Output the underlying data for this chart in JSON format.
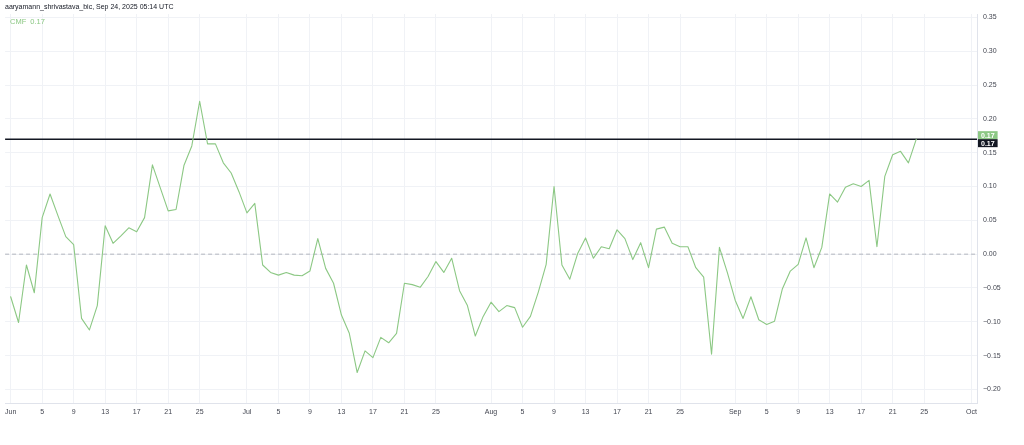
{
  "chart_data": {
    "type": "line",
    "title": "aaryamann_shrivastava_bic, Sep 24, 2025 05:14 UTC",
    "annotations": [
      "0.17",
      "0.17"
    ],
    "x": [
      "2025-06-01",
      "2025-06-02",
      "2025-06-03",
      "2025-06-04",
      "2025-06-05",
      "2025-06-06",
      "2025-06-07",
      "2025-06-08",
      "2025-06-09",
      "2025-06-10",
      "2025-06-11",
      "2025-06-12",
      "2025-06-13",
      "2025-06-14",
      "2025-06-15",
      "2025-06-16",
      "2025-06-17",
      "2025-06-18",
      "2025-06-19",
      "2025-06-20",
      "2025-06-21",
      "2025-06-22",
      "2025-06-23",
      "2025-06-24",
      "2025-06-25",
      "2025-06-26",
      "2025-06-27",
      "2025-06-28",
      "2025-06-29",
      "2025-06-30",
      "2025-07-01",
      "2025-07-02",
      "2025-07-03",
      "2025-07-04",
      "2025-07-05",
      "2025-07-06",
      "2025-07-07",
      "2025-07-08",
      "2025-07-09",
      "2025-07-10",
      "2025-07-11",
      "2025-07-12",
      "2025-07-13",
      "2025-07-14",
      "2025-07-15",
      "2025-07-16",
      "2025-07-17",
      "2025-07-18",
      "2025-07-19",
      "2025-07-20",
      "2025-07-21",
      "2025-07-22",
      "2025-07-23",
      "2025-07-24",
      "2025-07-25",
      "2025-07-26",
      "2025-07-27",
      "2025-07-28",
      "2025-07-29",
      "2025-07-30",
      "2025-07-31",
      "2025-08-01",
      "2025-08-02",
      "2025-08-03",
      "2025-08-04",
      "2025-08-05",
      "2025-08-06",
      "2025-08-07",
      "2025-08-08",
      "2025-08-09",
      "2025-08-10",
      "2025-08-11",
      "2025-08-12",
      "2025-08-13",
      "2025-08-14",
      "2025-08-15",
      "2025-08-16",
      "2025-08-17",
      "2025-08-18",
      "2025-08-19",
      "2025-08-20",
      "2025-08-21",
      "2025-08-22",
      "2025-08-23",
      "2025-08-24",
      "2025-08-25",
      "2025-08-26",
      "2025-08-27",
      "2025-08-28",
      "2025-08-29",
      "2025-08-30",
      "2025-08-31",
      "2025-09-01",
      "2025-09-02",
      "2025-09-03",
      "2025-09-04",
      "2025-09-05",
      "2025-09-06",
      "2025-09-07",
      "2025-09-08",
      "2025-09-09",
      "2025-09-10",
      "2025-09-11",
      "2025-09-12",
      "2025-09-13",
      "2025-09-14",
      "2025-09-15",
      "2025-09-16",
      "2025-09-17",
      "2025-09-18",
      "2025-09-19",
      "2025-09-20",
      "2025-09-21",
      "2025-09-22",
      "2025-09-23",
      "2025-09-24"
    ],
    "series": [
      {
        "name": "CMF",
        "color": "#8cc884",
        "values": [
          -0.063,
          -0.101,
          -0.016,
          -0.057,
          0.054,
          0.089,
          0.057,
          0.026,
          0.014,
          -0.095,
          -0.112,
          -0.076,
          0.042,
          0.016,
          0.027,
          0.039,
          0.033,
          0.054,
          0.132,
          0.098,
          0.064,
          0.066,
          0.131,
          0.16,
          0.226,
          0.163,
          0.163,
          0.135,
          0.12,
          0.092,
          0.061,
          0.075,
          -0.016,
          -0.027,
          -0.031,
          -0.027,
          -0.031,
          -0.032,
          -0.025,
          0.023,
          -0.021,
          -0.043,
          -0.09,
          -0.117,
          -0.175,
          -0.143,
          -0.153,
          -0.123,
          -0.131,
          -0.117,
          -0.043,
          -0.045,
          -0.049,
          -0.033,
          -0.011,
          -0.027,
          -0.006,
          -0.054,
          -0.076,
          -0.121,
          -0.092,
          -0.071,
          -0.085,
          -0.076,
          -0.079,
          -0.108,
          -0.092,
          -0.056,
          -0.015,
          0.1,
          -0.016,
          -0.037,
          0.001,
          0.024,
          -0.006,
          0.011,
          0.008,
          0.036,
          0.023,
          -0.008,
          0.017,
          -0.02,
          0.037,
          0.04,
          0.016,
          0.011,
          0.011,
          -0.02,
          -0.034,
          -0.148,
          0.01,
          -0.027,
          -0.068,
          -0.095,
          -0.063,
          -0.097,
          -0.104,
          -0.099,
          -0.051,
          -0.025,
          -0.015,
          0.024,
          -0.02,
          0.01,
          0.089,
          0.077,
          0.099,
          0.104,
          0.1,
          0.109,
          0.011,
          0.115,
          0.147,
          0.152,
          0.135,
          0.17
        ]
      }
    ],
    "xlim": [
      "2025-05-31T07:00",
      "2025-10-01T17:00"
    ],
    "ylim": [
      -0.22,
      0.355
    ],
    "xticks": [
      {
        "value": "2025-06-01",
        "label": "Jun"
      },
      {
        "value": "2025-06-05",
        "label": "5"
      },
      {
        "value": "2025-06-09",
        "label": "9"
      },
      {
        "value": "2025-06-13",
        "label": "13"
      },
      {
        "value": "2025-06-17",
        "label": "17"
      },
      {
        "value": "2025-06-21",
        "label": "21"
      },
      {
        "value": "2025-06-25",
        "label": "25"
      },
      {
        "value": "2025-07-01",
        "label": "Jul"
      },
      {
        "value": "2025-07-05",
        "label": "5"
      },
      {
        "value": "2025-07-09",
        "label": "9"
      },
      {
        "value": "2025-07-13",
        "label": "13"
      },
      {
        "value": "2025-07-17",
        "label": "17"
      },
      {
        "value": "2025-07-21",
        "label": "21"
      },
      {
        "value": "2025-07-25",
        "label": "25"
      },
      {
        "value": "2025-08-01",
        "label": "Aug"
      },
      {
        "value": "2025-08-05",
        "label": "5"
      },
      {
        "value": "2025-08-09",
        "label": "9"
      },
      {
        "value": "2025-08-13",
        "label": "13"
      },
      {
        "value": "2025-08-17",
        "label": "17"
      },
      {
        "value": "2025-08-21",
        "label": "21"
      },
      {
        "value": "2025-08-25",
        "label": "25"
      },
      {
        "value": "2025-09-01",
        "label": "Sep"
      },
      {
        "value": "2025-09-05",
        "label": "5"
      },
      {
        "value": "2025-09-09",
        "label": "9"
      },
      {
        "value": "2025-09-13",
        "label": "13"
      },
      {
        "value": "2025-09-17",
        "label": "17"
      },
      {
        "value": "2025-09-21",
        "label": "21"
      },
      {
        "value": "2025-09-25",
        "label": "25"
      },
      {
        "value": "2025-10-01",
        "label": "Oct"
      }
    ],
    "yticks": [
      {
        "value": 0.35,
        "label": "0.35"
      },
      {
        "value": 0.3,
        "label": "0.30"
      },
      {
        "value": 0.25,
        "label": "0.25"
      },
      {
        "value": 0.2,
        "label": "0.20"
      },
      {
        "value": 0.15,
        "label": "0.15"
      },
      {
        "value": 0.1,
        "label": "0.10"
      },
      {
        "value": 0.05,
        "label": "0.05"
      },
      {
        "value": 0,
        "label": "0.00"
      },
      {
        "value": -0.05,
        "label": "−0.05"
      },
      {
        "value": -0.1,
        "label": "−0.10"
      },
      {
        "value": -0.15,
        "label": "−0.15"
      },
      {
        "value": -0.2,
        "label": "−0.20"
      }
    ],
    "ref_lines": [
      {
        "axis": "y",
        "value": 0,
        "color": "#b2b5be",
        "line_style": "dashed"
      },
      {
        "axis": "y",
        "value": 0.17,
        "label": "0.17",
        "color": "#131722"
      }
    ],
    "grid": true,
    "legend": "top left",
    "marker": "none",
    "line_style": "solid"
  }
}
